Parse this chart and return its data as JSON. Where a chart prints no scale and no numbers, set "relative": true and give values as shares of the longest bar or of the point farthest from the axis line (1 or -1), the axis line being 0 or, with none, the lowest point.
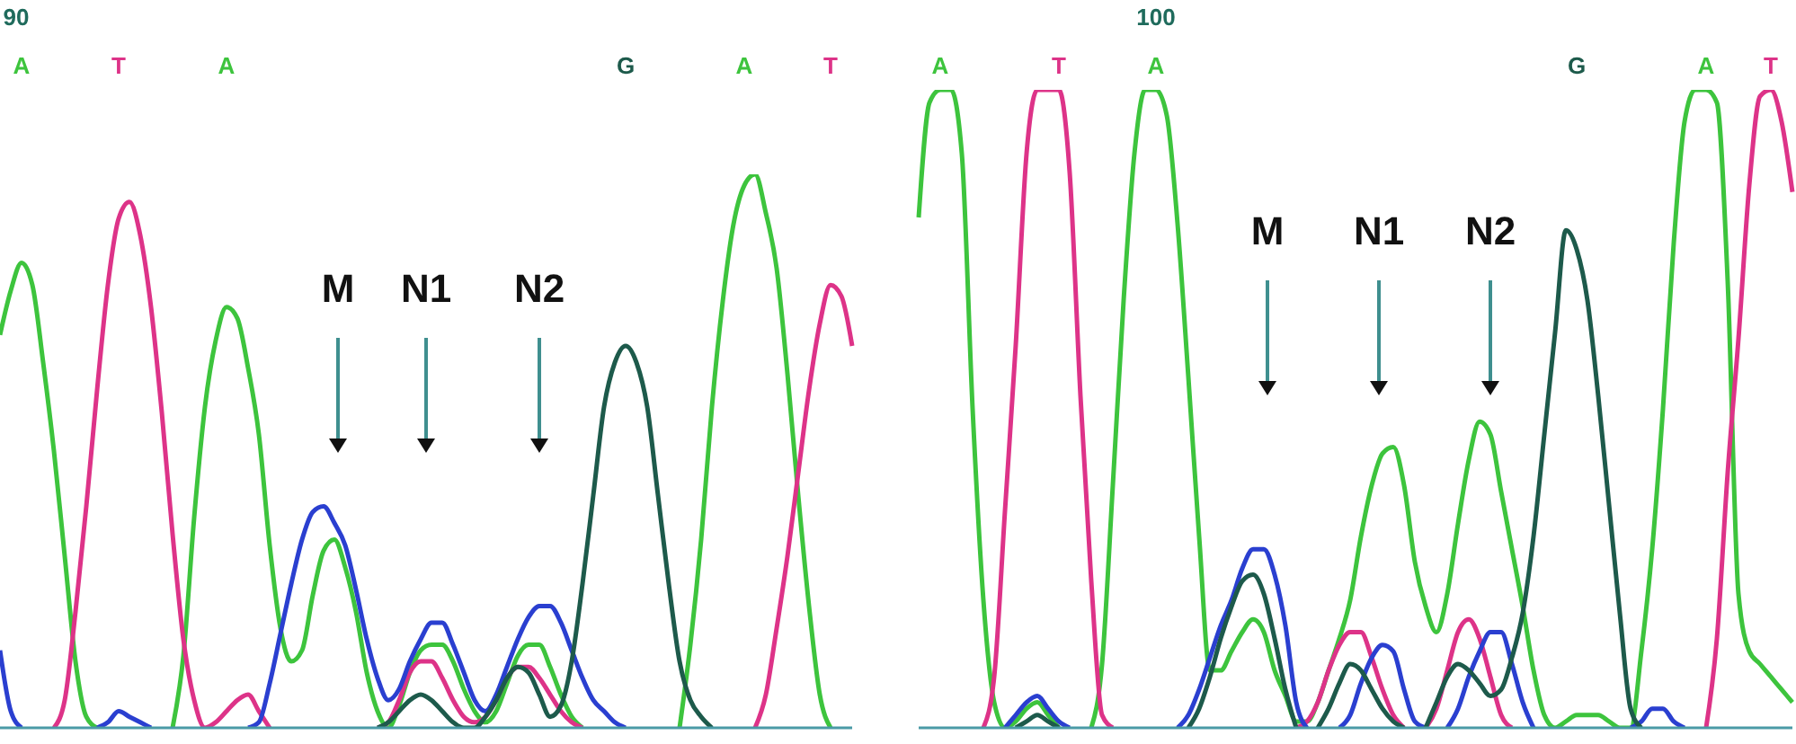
{
  "chart_data": [
    {
      "type": "line",
      "relative": true,
      "marker": "none",
      "categories": [
        null,
        null,
        "A",
        null,
        null,
        null,
        null,
        null,
        null,
        null,
        null,
        "T",
        null,
        null,
        null,
        null,
        null,
        null,
        null,
        null,
        null,
        "A",
        null,
        null,
        null,
        null,
        null,
        null,
        null,
        null,
        null,
        null,
        null,
        null,
        null,
        null,
        null,
        null,
        null,
        null,
        null,
        null,
        null,
        null,
        null,
        null,
        null,
        null,
        null,
        null,
        null,
        null,
        null,
        null,
        null,
        null,
        null,
        null,
        "G",
        null,
        null,
        null,
        null,
        null,
        null,
        null,
        null,
        null,
        null,
        "A",
        null,
        null,
        null,
        null,
        null,
        null,
        null,
        "T",
        null,
        null
      ],
      "series": [
        {
          "color": "#3dc43d",
          "values": [
            0.71,
            0.79,
            0.84,
            0.8,
            0.66,
            0.5,
            0.31,
            0.12,
            0.02,
            0,
            null,
            null,
            null,
            null,
            null,
            null,
            0,
            0.13,
            0.38,
            0.58,
            0.7,
            0.76,
            0.74,
            0.65,
            0.53,
            0.33,
            0.18,
            0.12,
            0.14,
            0.24,
            0.32,
            0.34,
            0.29,
            0.21,
            0.1,
            0.03,
            0,
            0.04,
            0.1,
            0.14,
            0.15,
            0.15,
            0.12,
            0.07,
            0.03,
            0.01,
            0.03,
            0.08,
            0.13,
            0.15,
            0.15,
            0.11,
            0.06,
            0.02,
            0,
            null,
            null,
            null,
            null,
            null,
            null,
            null,
            null,
            0,
            0.15,
            0.34,
            0.58,
            0.77,
            0.91,
            0.98,
            1,
            0.93,
            0.83,
            0.64,
            0.42,
            0.22,
            0.06,
            0,
            null,
            null
          ]
        },
        {
          "color": "#dd3388",
          "values": [
            null,
            null,
            null,
            null,
            null,
            0,
            0.05,
            0.21,
            0.4,
            0.61,
            0.8,
            0.92,
            0.95,
            0.89,
            0.76,
            0.57,
            0.35,
            0.16,
            0.05,
            0,
            0.01,
            0.03,
            0.05,
            0.06,
            0.03,
            0,
            null,
            null,
            null,
            null,
            null,
            null,
            null,
            null,
            null,
            0,
            0.01,
            0.05,
            0.1,
            0.12,
            0.12,
            0.09,
            0.05,
            0.02,
            0.01,
            0.02,
            0.05,
            0.09,
            0.11,
            0.11,
            0.09,
            0.06,
            0.03,
            0.01,
            0,
            null,
            null,
            null,
            null,
            null,
            null,
            null,
            null,
            null,
            null,
            null,
            null,
            null,
            null,
            null,
            0,
            0.06,
            0.18,
            0.31,
            0.46,
            0.61,
            0.73,
            0.8,
            0.78,
            0.69
          ]
        },
        {
          "color": "#2a3fd0",
          "values": [
            0.14,
            0.03,
            0,
            null,
            null,
            null,
            null,
            null,
            null,
            0,
            0.01,
            0.03,
            0.02,
            0.01,
            0,
            null,
            null,
            null,
            null,
            null,
            null,
            null,
            null,
            0,
            0.01,
            0.08,
            0.17,
            0.26,
            0.34,
            0.39,
            0.4,
            0.37,
            0.33,
            0.25,
            0.16,
            0.09,
            0.05,
            0.07,
            0.12,
            0.16,
            0.19,
            0.19,
            0.15,
            0.1,
            0.05,
            0.03,
            0.06,
            0.11,
            0.16,
            0.2,
            0.22,
            0.22,
            0.19,
            0.14,
            0.09,
            0.05,
            0.03,
            0.01,
            0,
            null,
            null,
            null,
            null,
            null,
            null,
            null,
            null,
            null,
            null,
            null,
            null,
            null,
            null,
            null,
            null,
            null,
            null,
            null,
            null,
            null
          ]
        },
        {
          "color": "#1d5a4b",
          "values": [
            null,
            null,
            null,
            null,
            null,
            null,
            null,
            null,
            null,
            null,
            null,
            null,
            null,
            null,
            null,
            null,
            null,
            null,
            null,
            null,
            null,
            null,
            null,
            null,
            null,
            null,
            null,
            null,
            null,
            null,
            null,
            null,
            null,
            null,
            null,
            0,
            0.01,
            0.03,
            0.05,
            0.06,
            0.05,
            0.03,
            0.01,
            0,
            0,
            0.02,
            0.05,
            0.09,
            0.11,
            0.1,
            0.06,
            0.02,
            0.04,
            0.12,
            0.26,
            0.42,
            0.58,
            0.66,
            0.69,
            0.66,
            0.58,
            0.42,
            0.26,
            0.12,
            0.05,
            0.02,
            0,
            null,
            null,
            null,
            null,
            null,
            null,
            null,
            null,
            null,
            null,
            null,
            null,
            null
          ]
        }
      ],
      "annotations": [
        "90",
        "M",
        "N1",
        "N2"
      ]
    },
    {
      "type": "line",
      "relative": true,
      "marker": "none",
      "categories": [
        null,
        null,
        "A",
        null,
        null,
        null,
        null,
        null,
        null,
        null,
        null,
        null,
        null,
        "T",
        null,
        null,
        null,
        null,
        null,
        null,
        null,
        null,
        "A",
        null,
        null,
        null,
        null,
        null,
        null,
        null,
        null,
        null,
        null,
        null,
        null,
        null,
        null,
        null,
        null,
        null,
        null,
        null,
        null,
        null,
        null,
        null,
        null,
        null,
        null,
        null,
        null,
        null,
        null,
        null,
        null,
        null,
        null,
        null,
        null,
        null,
        null,
        "G",
        null,
        null,
        null,
        null,
        null,
        null,
        null,
        null,
        null,
        null,
        null,
        "A",
        null,
        null,
        null,
        null,
        null,
        "T",
        null,
        null
      ],
      "series": [
        {
          "color": "#3dc43d",
          "values": [
            0.8,
            0.98,
            1,
            1,
            0.9,
            0.5,
            0.2,
            0.04,
            0,
            0.01,
            0.03,
            0.04,
            0.02,
            0,
            null,
            null,
            0,
            0.1,
            0.38,
            0.67,
            0.9,
            1,
            1,
            0.96,
            0.79,
            0.55,
            0.3,
            0.09,
            0.09,
            0.12,
            0.15,
            0.17,
            0.15,
            0.09,
            0.05,
            0.01,
            0.01,
            0.04,
            0.09,
            0.14,
            0.2,
            0.3,
            0.38,
            0.43,
            0.44,
            0.38,
            0.26,
            0.19,
            0.15,
            0.21,
            0.32,
            0.42,
            0.48,
            0.46,
            0.37,
            0.28,
            0.19,
            0.09,
            0.02,
            0,
            0.01,
            0.02,
            0.02,
            0.02,
            0.01,
            0,
            0,
            0.12,
            0.28,
            0.5,
            0.76,
            0.95,
            1,
            1,
            0.98,
            0.7,
            0.21,
            0.12,
            0.1,
            0.08,
            0.06,
            0.04
          ]
        },
        {
          "color": "#dd3388",
          "values": [
            null,
            null,
            null,
            null,
            null,
            null,
            0,
            0.08,
            0.34,
            0.6,
            0.9,
            1,
            1,
            1,
            0.87,
            0.52,
            0.23,
            0.02,
            0,
            null,
            null,
            null,
            null,
            null,
            null,
            null,
            null,
            null,
            null,
            null,
            null,
            null,
            null,
            null,
            null,
            0,
            0.01,
            0.04,
            0.09,
            0.13,
            0.15,
            0.15,
            0.11,
            0.06,
            0.02,
            0,
            null,
            0,
            0.03,
            0.09,
            0.15,
            0.17,
            0.14,
            0.08,
            0.02,
            0,
            null,
            null,
            null,
            null,
            null,
            null,
            null,
            null,
            null,
            null,
            null,
            null,
            null,
            null,
            null,
            null,
            null,
            0,
            0.14,
            0.4,
            0.61,
            0.85,
            0.99,
            1,
            0.95,
            0.84
          ]
        },
        {
          "color": "#2a3fd0",
          "values": [
            null,
            null,
            null,
            null,
            null,
            null,
            null,
            null,
            0,
            0.02,
            0.04,
            0.05,
            0.03,
            0.01,
            0,
            null,
            null,
            null,
            null,
            null,
            null,
            null,
            null,
            null,
            0,
            0.02,
            0.06,
            0.11,
            0.16,
            0.2,
            0.25,
            0.28,
            0.28,
            0.24,
            0.16,
            0.04,
            0,
            null,
            null,
            0,
            0.02,
            0.07,
            0.11,
            0.13,
            0.12,
            0.06,
            0.01,
            0,
            null,
            0,
            0.03,
            0.08,
            0.12,
            0.15,
            0.15,
            0.1,
            0.04,
            0,
            null,
            null,
            null,
            null,
            null,
            null,
            null,
            null,
            0,
            0.01,
            0.03,
            0.03,
            0.01,
            0,
            null,
            null,
            null,
            null,
            null,
            null,
            null,
            null,
            null,
            null
          ]
        },
        {
          "color": "#1d5a4b",
          "values": [
            null,
            null,
            null,
            null,
            null,
            null,
            null,
            null,
            null,
            0,
            0.01,
            0.02,
            0.01,
            0,
            null,
            null,
            null,
            null,
            null,
            null,
            null,
            null,
            null,
            null,
            null,
            0,
            0.03,
            0.08,
            0.14,
            0.19,
            0.23,
            0.24,
            0.21,
            0.14,
            0.06,
            0,
            null,
            0,
            0.03,
            0.07,
            0.1,
            0.09,
            0.06,
            0.03,
            0.01,
            0,
            null,
            0,
            0.04,
            0.08,
            0.1,
            0.09,
            0.07,
            0.05,
            0.06,
            0.11,
            0.18,
            0.3,
            0.46,
            0.62,
            0.78,
            0.75,
            0.67,
            0.52,
            0.35,
            0.18,
            0.03,
            0,
            null,
            null,
            null,
            null,
            null,
            null,
            null,
            null,
            null,
            null,
            null,
            null,
            null,
            null
          ]
        }
      ],
      "annotations": [
        "100",
        "M",
        "N1",
        "N2"
      ]
    }
  ]
}
